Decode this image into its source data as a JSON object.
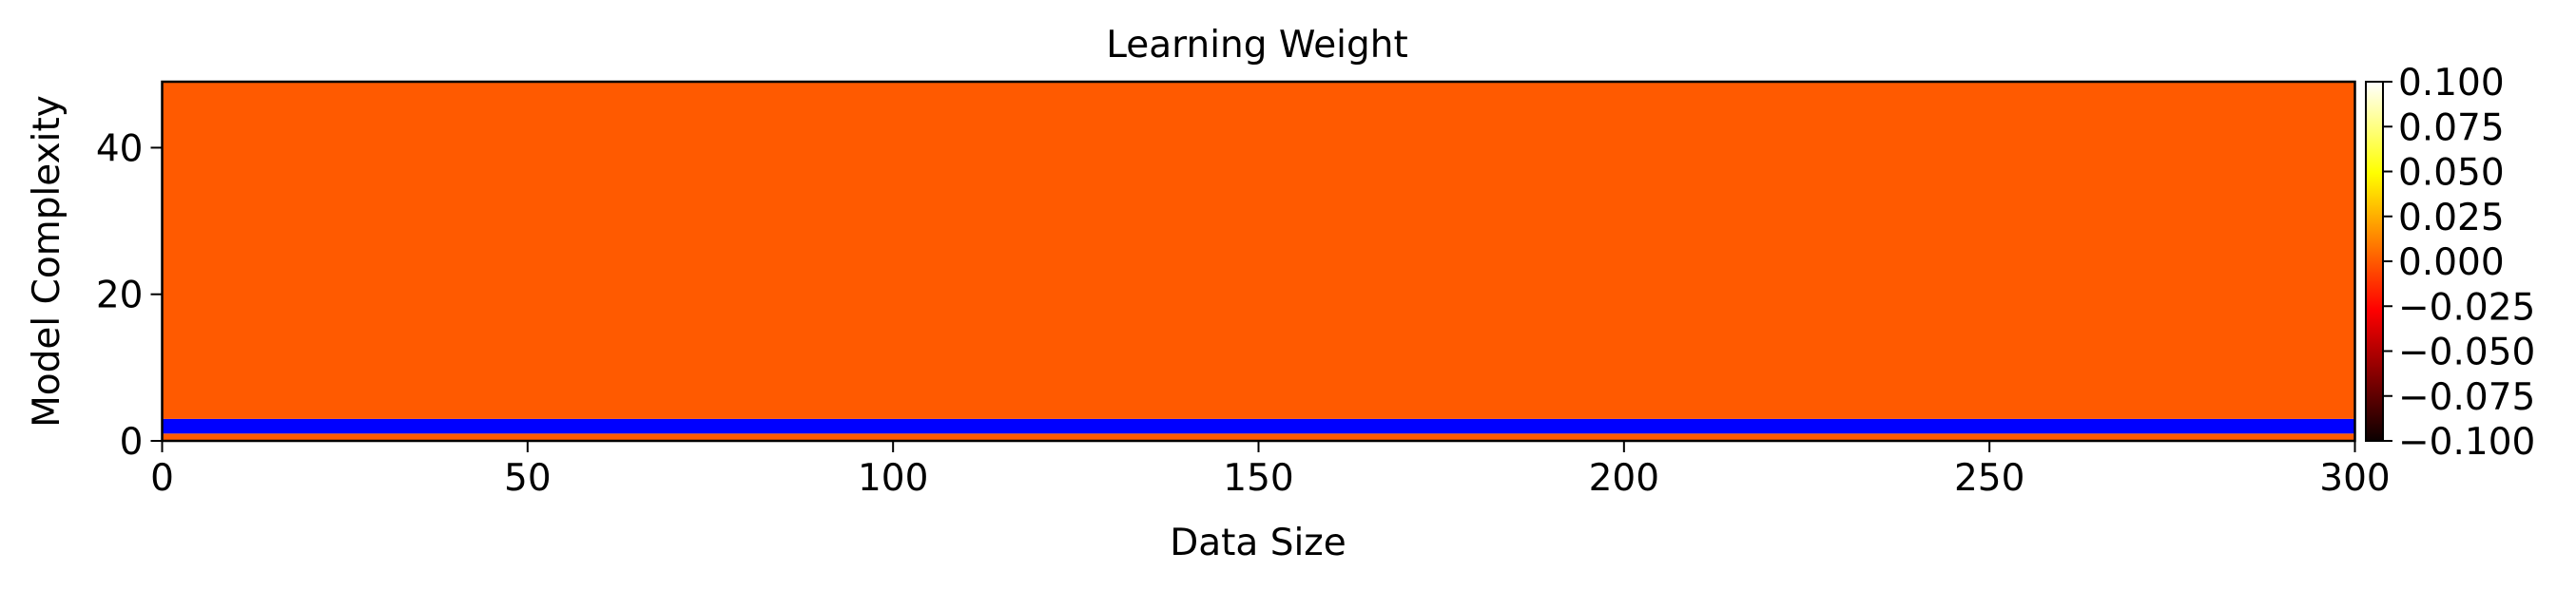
{
  "chart_data": {
    "type": "heatmap",
    "title": "Learning Weight",
    "xlabel": "Data Size",
    "ylabel": "Model Complexity",
    "xlim": [
      0,
      300
    ],
    "ylim": [
      0,
      49
    ],
    "xticks": [
      "0",
      "50",
      "100",
      "150",
      "200",
      "250",
      "300"
    ],
    "yticks": [
      "0",
      "20",
      "40"
    ],
    "colormap": "hot",
    "colorbar": {
      "range": [
        -0.1,
        0.1
      ],
      "ticks": [
        "−0.100",
        "−0.075",
        "−0.050",
        "−0.025",
        "0.000",
        "0.025",
        "0.050",
        "0.075",
        "0.100"
      ]
    },
    "bands": [
      {
        "y_from": 0,
        "y_to": 1,
        "value": 0.0,
        "color": "#ff5a00"
      },
      {
        "y_from": 1,
        "y_to": 3,
        "value": null,
        "color": "#0000ff"
      },
      {
        "y_from": 3,
        "y_to": 49,
        "value": 0.0,
        "color": "#ff5a00"
      }
    ],
    "grid": false
  }
}
